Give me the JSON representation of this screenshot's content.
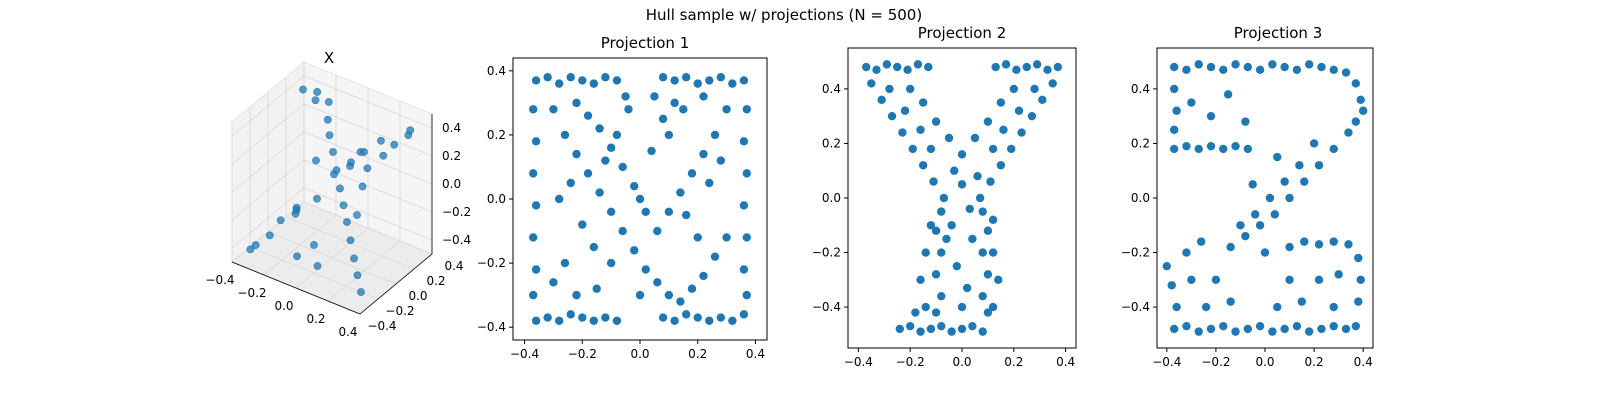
{
  "figure": {
    "title": "Hull sample w/ projections (N = 500)",
    "color": "#1f77b4"
  },
  "chart_data": [
    {
      "type": "scatter",
      "title": "X",
      "projection": "3d",
      "xlim": [
        -0.4,
        0.4
      ],
      "ylim": [
        -0.4,
        0.4
      ],
      "zlim": [
        -0.5,
        0.5
      ],
      "x_ticks": [
        "−0.4",
        "−0.2",
        "0.0",
        "0.2",
        "0.4"
      ],
      "y_ticks": [
        "−0.4",
        "−0.2",
        "0.0",
        "0.2",
        "0.4"
      ],
      "z_ticks": [
        "−0.4",
        "−0.2",
        "0.0",
        "0.2",
        "0.4"
      ],
      "points": [
        [
          -0.35,
          0.3,
          0.38
        ],
        [
          -0.3,
          0.35,
          0.3
        ],
        [
          -0.25,
          0.28,
          0.42
        ],
        [
          -0.2,
          0.32,
          0.35
        ],
        [
          -0.15,
          0.22,
          0.3
        ],
        [
          -0.1,
          0.15,
          0.25
        ],
        [
          -0.05,
          0.1,
          0.18
        ],
        [
          0.0,
          0.05,
          0.1
        ],
        [
          0.05,
          0.0,
          0.02
        ],
        [
          0.1,
          -0.05,
          -0.05
        ],
        [
          0.15,
          -0.1,
          -0.12
        ],
        [
          0.2,
          -0.15,
          -0.2
        ],
        [
          0.25,
          -0.2,
          -0.28
        ],
        [
          0.3,
          -0.25,
          -0.35
        ],
        [
          0.35,
          -0.3,
          -0.42
        ],
        [
          0.32,
          0.3,
          0.4
        ],
        [
          0.28,
          0.35,
          0.32
        ],
        [
          0.22,
          0.3,
          0.25
        ],
        [
          0.18,
          0.25,
          0.18
        ],
        [
          0.12,
          0.18,
          0.1
        ],
        [
          -0.12,
          -0.18,
          -0.1
        ],
        [
          -0.18,
          -0.25,
          -0.18
        ],
        [
          -0.22,
          -0.3,
          -0.28
        ],
        [
          -0.28,
          -0.35,
          -0.35
        ],
        [
          -0.33,
          -0.32,
          -0.42
        ],
        [
          0.0,
          0.2,
          0.05
        ],
        [
          0.05,
          0.25,
          -0.1
        ],
        [
          -0.05,
          0.3,
          0.0
        ],
        [
          0.1,
          0.1,
          -0.2
        ],
        [
          -0.1,
          0.0,
          0.15
        ],
        [
          0.0,
          -0.2,
          -0.3
        ],
        [
          0.05,
          -0.25,
          -0.4
        ],
        [
          -0.05,
          -0.3,
          -0.35
        ],
        [
          0.15,
          0.05,
          0.3
        ],
        [
          -0.15,
          0.1,
          -0.2
        ],
        [
          0.2,
          0.0,
          0.35
        ],
        [
          -0.2,
          -0.05,
          -0.25
        ],
        [
          0.25,
          0.1,
          0.4
        ],
        [
          -0.25,
          0.05,
          -0.3
        ],
        [
          0.08,
          -0.12,
          0.2
        ]
      ]
    },
    {
      "type": "scatter",
      "title": "Projection 1",
      "xlim": [
        -0.4,
        0.4
      ],
      "ylim": [
        -0.4,
        0.4
      ],
      "x_ticks": [
        "−0.4",
        "−0.2",
        "0.0",
        "0.2",
        "0.4"
      ],
      "y_ticks": [
        "−0.4",
        "−0.2",
        "0.0",
        "0.2",
        "0.4"
      ],
      "points": [
        [
          -0.36,
          0.37
        ],
        [
          -0.32,
          0.38
        ],
        [
          -0.28,
          0.36
        ],
        [
          -0.24,
          0.38
        ],
        [
          -0.2,
          0.37
        ],
        [
          -0.16,
          0.36
        ],
        [
          -0.12,
          0.38
        ],
        [
          -0.08,
          0.37
        ],
        [
          0.08,
          0.38
        ],
        [
          0.12,
          0.37
        ],
        [
          0.16,
          0.38
        ],
        [
          0.2,
          0.36
        ],
        [
          0.24,
          0.37
        ],
        [
          0.28,
          0.38
        ],
        [
          0.32,
          0.36
        ],
        [
          0.36,
          0.37
        ],
        [
          -0.36,
          -0.38
        ],
        [
          -0.32,
          -0.37
        ],
        [
          -0.28,
          -0.38
        ],
        [
          -0.24,
          -0.36
        ],
        [
          -0.2,
          -0.37
        ],
        [
          -0.16,
          -0.38
        ],
        [
          -0.12,
          -0.37
        ],
        [
          -0.08,
          -0.38
        ],
        [
          0.08,
          -0.37
        ],
        [
          0.12,
          -0.38
        ],
        [
          0.16,
          -0.36
        ],
        [
          0.2,
          -0.37
        ],
        [
          0.24,
          -0.38
        ],
        [
          0.28,
          -0.37
        ],
        [
          0.32,
          -0.38
        ],
        [
          0.36,
          -0.36
        ],
        [
          -0.37,
          0.28
        ],
        [
          -0.36,
          0.18
        ],
        [
          -0.37,
          0.08
        ],
        [
          -0.36,
          -0.02
        ],
        [
          -0.37,
          -0.12
        ],
        [
          -0.36,
          -0.22
        ],
        [
          -0.37,
          -0.3
        ],
        [
          0.37,
          0.28
        ],
        [
          0.36,
          0.18
        ],
        [
          0.37,
          0.08
        ],
        [
          0.36,
          -0.02
        ],
        [
          0.37,
          -0.12
        ],
        [
          0.36,
          -0.22
        ],
        [
          0.37,
          -0.3
        ],
        [
          -0.3,
          0.28
        ],
        [
          -0.26,
          0.2
        ],
        [
          -0.22,
          0.14
        ],
        [
          -0.18,
          0.08
        ],
        [
          -0.14,
          0.02
        ],
        [
          -0.1,
          -0.04
        ],
        [
          -0.06,
          -0.1
        ],
        [
          -0.02,
          -0.16
        ],
        [
          0.02,
          -0.22
        ],
        [
          0.06,
          -0.26
        ],
        [
          0.1,
          -0.3
        ],
        [
          0.14,
          -0.32
        ],
        [
          0.18,
          -0.28
        ],
        [
          0.22,
          -0.24
        ],
        [
          0.26,
          -0.18
        ],
        [
          0.3,
          -0.12
        ],
        [
          0.3,
          0.28
        ],
        [
          0.26,
          0.2
        ],
        [
          0.22,
          0.14
        ],
        [
          0.18,
          0.08
        ],
        [
          0.14,
          0.02
        ],
        [
          0.1,
          -0.04
        ],
        [
          0.06,
          -0.1
        ],
        [
          0.02,
          -0.04
        ],
        [
          -0.02,
          0.04
        ],
        [
          -0.06,
          0.1
        ],
        [
          -0.1,
          0.16
        ],
        [
          -0.14,
          0.22
        ],
        [
          -0.18,
          0.26
        ],
        [
          -0.22,
          0.3
        ],
        [
          -0.26,
          -0.2
        ],
        [
          -0.3,
          -0.26
        ],
        [
          -0.24,
          0.05
        ],
        [
          -0.2,
          -0.08
        ],
        [
          -0.16,
          -0.15
        ],
        [
          -0.12,
          0.12
        ],
        [
          -0.08,
          0.2
        ],
        [
          -0.04,
          0.28
        ],
        [
          0.0,
          0.0
        ],
        [
          0.04,
          0.15
        ],
        [
          0.08,
          0.25
        ],
        [
          0.12,
          0.3
        ],
        [
          0.16,
          -0.05
        ],
        [
          0.2,
          -0.12
        ],
        [
          0.24,
          0.05
        ],
        [
          0.28,
          0.12
        ],
        [
          -0.28,
          0.0
        ],
        [
          0.0,
          -0.3
        ],
        [
          -0.05,
          0.32
        ],
        [
          0.05,
          0.32
        ],
        [
          -0.15,
          -0.28
        ],
        [
          0.15,
          0.28
        ],
        [
          -0.22,
          -0.3
        ],
        [
          0.22,
          0.32
        ],
        [
          0.1,
          0.2
        ],
        [
          -0.1,
          -0.2
        ]
      ]
    },
    {
      "type": "scatter",
      "title": "Projection 2",
      "xlim": [
        -0.4,
        0.4
      ],
      "ylim": [
        -0.5,
        0.5
      ],
      "x_ticks": [
        "−0.4",
        "−0.2",
        "0.0",
        "0.2",
        "0.4"
      ],
      "y_ticks": [
        "−0.4",
        "−0.2",
        "0.0",
        "0.2",
        "0.4"
      ],
      "points": [
        [
          -0.37,
          0.48
        ],
        [
          -0.33,
          0.47
        ],
        [
          -0.29,
          0.49
        ],
        [
          -0.25,
          0.48
        ],
        [
          -0.21,
          0.47
        ],
        [
          -0.17,
          0.49
        ],
        [
          -0.13,
          0.48
        ],
        [
          0.13,
          0.48
        ],
        [
          0.17,
          0.49
        ],
        [
          0.21,
          0.47
        ],
        [
          0.25,
          0.48
        ],
        [
          0.29,
          0.49
        ],
        [
          0.33,
          0.47
        ],
        [
          0.37,
          0.48
        ],
        [
          -0.35,
          0.42
        ],
        [
          -0.31,
          0.36
        ],
        [
          -0.27,
          0.3
        ],
        [
          -0.23,
          0.24
        ],
        [
          -0.19,
          0.18
        ],
        [
          -0.15,
          0.12
        ],
        [
          -0.11,
          0.06
        ],
        [
          -0.07,
          0.0
        ],
        [
          0.35,
          0.42
        ],
        [
          0.31,
          0.36
        ],
        [
          0.27,
          0.3
        ],
        [
          0.23,
          0.24
        ],
        [
          0.19,
          0.18
        ],
        [
          0.15,
          0.12
        ],
        [
          0.11,
          0.06
        ],
        [
          0.07,
          0.0
        ],
        [
          -0.2,
          0.4
        ],
        [
          -0.15,
          0.35
        ],
        [
          -0.1,
          0.28
        ],
        [
          -0.05,
          0.22
        ],
        [
          0.0,
          0.16
        ],
        [
          0.05,
          0.22
        ],
        [
          0.1,
          0.28
        ],
        [
          0.15,
          0.35
        ],
        [
          0.2,
          0.4
        ],
        [
          -0.28,
          0.4
        ],
        [
          0.28,
          0.4
        ],
        [
          -0.22,
          0.32
        ],
        [
          0.22,
          0.32
        ],
        [
          -0.16,
          0.25
        ],
        [
          0.16,
          0.25
        ],
        [
          -0.12,
          0.18
        ],
        [
          0.12,
          0.18
        ],
        [
          -0.08,
          -0.05
        ],
        [
          0.08,
          -0.05
        ],
        [
          -0.1,
          -0.12
        ],
        [
          0.1,
          -0.12
        ],
        [
          -0.08,
          -0.2
        ],
        [
          0.08,
          -0.2
        ],
        [
          -0.1,
          -0.28
        ],
        [
          0.1,
          -0.28
        ],
        [
          -0.08,
          -0.36
        ],
        [
          0.08,
          -0.36
        ],
        [
          -0.1,
          -0.42
        ],
        [
          0.1,
          -0.42
        ],
        [
          -0.04,
          -0.1
        ],
        [
          0.04,
          -0.15
        ],
        [
          -0.02,
          -0.25
        ],
        [
          0.02,
          -0.33
        ],
        [
          -0.24,
          -0.48
        ],
        [
          -0.2,
          -0.47
        ],
        [
          -0.16,
          -0.49
        ],
        [
          -0.12,
          -0.48
        ],
        [
          -0.08,
          -0.47
        ],
        [
          -0.04,
          -0.49
        ],
        [
          0.0,
          -0.48
        ],
        [
          0.04,
          -0.47
        ],
        [
          0.08,
          -0.49
        ],
        [
          -0.14,
          -0.4
        ],
        [
          -0.16,
          -0.3
        ],
        [
          -0.14,
          -0.2
        ],
        [
          0.12,
          -0.4
        ],
        [
          0.14,
          -0.3
        ],
        [
          0.12,
          -0.2
        ],
        [
          -0.18,
          -0.42
        ],
        [
          0.0,
          0.05
        ],
        [
          0.03,
          -0.04
        ],
        [
          -0.03,
          0.1
        ],
        [
          0.06,
          0.08
        ],
        [
          -0.06,
          -0.15
        ],
        [
          0.0,
          -0.4
        ],
        [
          -0.12,
          -0.1
        ],
        [
          0.12,
          -0.08
        ]
      ]
    },
    {
      "type": "scatter",
      "title": "Projection 3",
      "xlim": [
        -0.4,
        0.4
      ],
      "ylim": [
        -0.5,
        0.5
      ],
      "x_ticks": [
        "−0.4",
        "−0.2",
        "0.0",
        "0.2",
        "0.4"
      ],
      "y_ticks": [
        "−0.4",
        "−0.2",
        "0.0",
        "0.2",
        "0.4"
      ],
      "points": [
        [
          -0.37,
          0.48
        ],
        [
          -0.32,
          0.47
        ],
        [
          -0.27,
          0.49
        ],
        [
          -0.22,
          0.48
        ],
        [
          -0.17,
          0.47
        ],
        [
          -0.12,
          0.49
        ],
        [
          -0.07,
          0.48
        ],
        [
          -0.02,
          0.47
        ],
        [
          0.03,
          0.49
        ],
        [
          0.08,
          0.48
        ],
        [
          0.13,
          0.47
        ],
        [
          0.18,
          0.49
        ],
        [
          0.23,
          0.48
        ],
        [
          0.28,
          0.47
        ],
        [
          0.33,
          0.46
        ],
        [
          0.37,
          0.42
        ],
        [
          0.39,
          0.36
        ],
        [
          0.4,
          0.32
        ],
        [
          0.37,
          0.28
        ],
        [
          0.34,
          0.24
        ],
        [
          -0.37,
          0.18
        ],
        [
          -0.32,
          0.19
        ],
        [
          -0.27,
          0.18
        ],
        [
          -0.22,
          0.19
        ],
        [
          -0.17,
          0.18
        ],
        [
          -0.12,
          0.19
        ],
        [
          -0.07,
          0.18
        ],
        [
          -0.37,
          0.4
        ],
        [
          -0.36,
          0.32
        ],
        [
          -0.37,
          0.25
        ],
        [
          -0.3,
          0.35
        ],
        [
          -0.22,
          0.3
        ],
        [
          -0.15,
          0.38
        ],
        [
          -0.08,
          0.28
        ],
        [
          0.28,
          0.18
        ],
        [
          0.22,
          0.12
        ],
        [
          0.16,
          0.06
        ],
        [
          0.1,
          0.0
        ],
        [
          0.04,
          -0.06
        ],
        [
          -0.02,
          -0.1
        ],
        [
          -0.08,
          -0.14
        ],
        [
          -0.14,
          -0.18
        ],
        [
          0.2,
          0.2
        ],
        [
          0.14,
          0.12
        ],
        [
          0.08,
          0.06
        ],
        [
          0.02,
          0.0
        ],
        [
          -0.04,
          -0.06
        ],
        [
          -0.1,
          -0.1
        ],
        [
          0.05,
          0.15
        ],
        [
          -0.05,
          0.05
        ],
        [
          -0.37,
          -0.48
        ],
        [
          -0.32,
          -0.47
        ],
        [
          -0.27,
          -0.49
        ],
        [
          -0.22,
          -0.48
        ],
        [
          -0.17,
          -0.47
        ],
        [
          -0.12,
          -0.49
        ],
        [
          -0.07,
          -0.48
        ],
        [
          -0.02,
          -0.47
        ],
        [
          0.03,
          -0.49
        ],
        [
          0.08,
          -0.48
        ],
        [
          0.13,
          -0.47
        ],
        [
          0.18,
          -0.49
        ],
        [
          0.23,
          -0.48
        ],
        [
          0.28,
          -0.47
        ],
        [
          0.33,
          -0.48
        ],
        [
          0.37,
          -0.47
        ],
        [
          -0.4,
          -0.25
        ],
        [
          -0.38,
          -0.32
        ],
        [
          -0.36,
          -0.4
        ],
        [
          -0.32,
          -0.2
        ],
        [
          -0.26,
          -0.16
        ],
        [
          -0.2,
          -0.3
        ],
        [
          -0.14,
          -0.38
        ],
        [
          -0.24,
          -0.4
        ],
        [
          0.1,
          -0.18
        ],
        [
          0.16,
          -0.16
        ],
        [
          0.22,
          -0.17
        ],
        [
          0.28,
          -0.16
        ],
        [
          0.34,
          -0.17
        ],
        [
          0.38,
          -0.22
        ],
        [
          0.39,
          -0.3
        ],
        [
          0.38,
          -0.38
        ],
        [
          0.22,
          -0.3
        ],
        [
          0.28,
          -0.4
        ],
        [
          0.15,
          -0.38
        ],
        [
          0.3,
          -0.28
        ],
        [
          0.1,
          -0.3
        ],
        [
          -0.3,
          -0.3
        ],
        [
          0.0,
          -0.2
        ],
        [
          0.05,
          -0.4
        ]
      ]
    }
  ]
}
